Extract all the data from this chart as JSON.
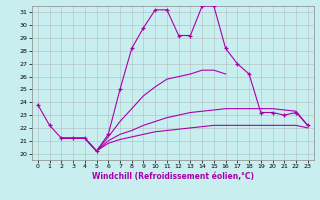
{
  "xlabel": "Windchill (Refroidissement éolien,°C)",
  "xlim": [
    -0.5,
    23.5
  ],
  "ylim": [
    19.5,
    31.5
  ],
  "xticks": [
    0,
    1,
    2,
    3,
    4,
    5,
    6,
    7,
    8,
    9,
    10,
    11,
    12,
    13,
    14,
    15,
    16,
    17,
    18,
    19,
    20,
    21,
    22,
    23
  ],
  "yticks": [
    20,
    21,
    22,
    23,
    24,
    25,
    26,
    27,
    28,
    29,
    30,
    31
  ],
  "bg_color": "#c8eef0",
  "line_color": "#aa00aa",
  "grid_color": "#aaaaaa",
  "lines": [
    {
      "x": [
        0,
        1,
        2,
        3,
        4,
        5,
        6,
        7,
        8,
        9,
        10,
        11,
        12,
        13,
        14,
        15,
        16,
        17,
        18,
        19,
        20,
        21,
        22,
        23
      ],
      "y": [
        23.8,
        22.2,
        21.2,
        21.2,
        21.2,
        20.2,
        21.5,
        25.0,
        28.2,
        29.8,
        31.2,
        31.2,
        29.2,
        29.2,
        31.5,
        31.5,
        28.2,
        27.0,
        26.2,
        23.2,
        23.2,
        23.0,
        23.2,
        22.2
      ],
      "marker": "+"
    },
    {
      "x": [
        2,
        3,
        4,
        5,
        6,
        7,
        8,
        9,
        10,
        11,
        12,
        13,
        14,
        15,
        16
      ],
      "y": [
        21.2,
        21.2,
        21.2,
        20.2,
        21.3,
        22.5,
        23.5,
        24.5,
        25.2,
        25.8,
        26.0,
        26.2,
        26.5,
        26.5,
        26.2
      ]
    },
    {
      "x": [
        2,
        3,
        4,
        5,
        6,
        7,
        8,
        9,
        10,
        11,
        12,
        13,
        14,
        15,
        16,
        17,
        18,
        19,
        20,
        21,
        22,
        23
      ],
      "y": [
        21.2,
        21.2,
        21.2,
        20.2,
        21.0,
        21.5,
        21.8,
        22.2,
        22.5,
        22.8,
        23.0,
        23.2,
        23.3,
        23.4,
        23.5,
        23.5,
        23.5,
        23.5,
        23.5,
        23.4,
        23.3,
        22.2
      ]
    },
    {
      "x": [
        2,
        3,
        4,
        5,
        6,
        7,
        8,
        9,
        10,
        11,
        12,
        13,
        14,
        15,
        16,
        17,
        18,
        19,
        20,
        21,
        22,
        23
      ],
      "y": [
        21.2,
        21.2,
        21.2,
        20.2,
        20.8,
        21.1,
        21.3,
        21.5,
        21.7,
        21.8,
        21.9,
        22.0,
        22.1,
        22.2,
        22.2,
        22.2,
        22.2,
        22.2,
        22.2,
        22.2,
        22.2,
        22.0
      ]
    }
  ]
}
